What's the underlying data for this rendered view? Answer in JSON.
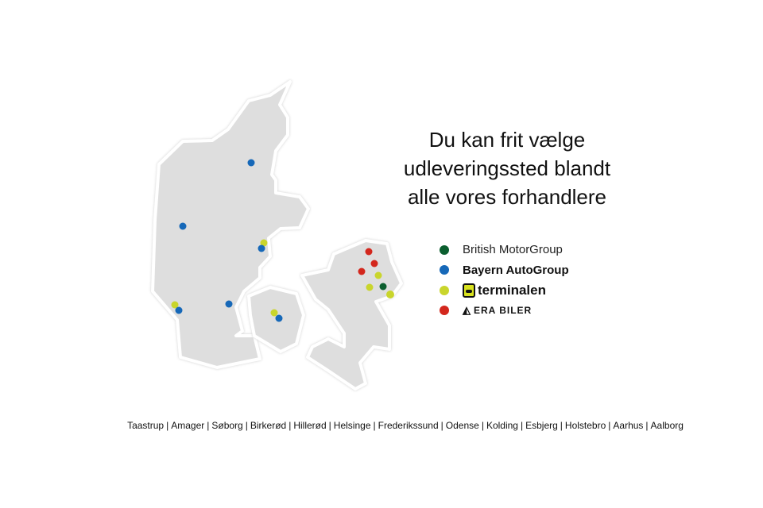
{
  "title_lines": [
    "Du kan frit vælge",
    "udleveringssted blandt",
    "alle vores forhandlere"
  ],
  "colors": {
    "british": "#0b5e2f",
    "bayern": "#1668b8",
    "terminalen": "#c9d52c",
    "era": "#d3271d",
    "land": "#dedede"
  },
  "legend": [
    {
      "key": "british",
      "label": "British MotorGroup"
    },
    {
      "key": "bayern",
      "label": "Bayern AutoGroup"
    },
    {
      "key": "terminalen",
      "label": "terminalen"
    },
    {
      "key": "era",
      "label": "ERA BILER"
    }
  ],
  "cities": [
    "Taastrup",
    "Amager",
    "Søborg",
    "Birkerød",
    "Hillerød",
    "Helsinge",
    "Frederikssund",
    "Odense",
    "Kolding",
    "Esbjerg",
    "Holstebro",
    "Aarhus",
    "Aalborg"
  ],
  "regions": [
    "Jylland",
    "Fyn",
    "Sjælland"
  ]
}
